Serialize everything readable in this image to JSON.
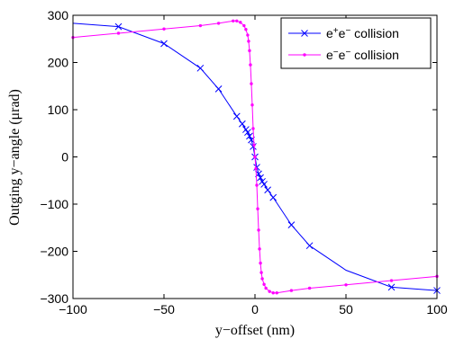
{
  "chart_data": {
    "type": "line",
    "title": "",
    "xlabel": "y−offset (nm)",
    "ylabel": "Outging y−angle (μrad)",
    "xlim": [
      -100,
      100
    ],
    "ylim": [
      -300,
      300
    ],
    "xticks": [
      -100,
      -50,
      0,
      50,
      100
    ],
    "yticks": [
      -300,
      -200,
      -100,
      0,
      100,
      200,
      300
    ],
    "xtick_labels": [
      "−100",
      "−50",
      "0",
      "50",
      "100"
    ],
    "ytick_labels": [
      "−300",
      "−200",
      "−100",
      "0",
      "100",
      "200",
      "300"
    ],
    "grid": false,
    "legend_position": "top-right",
    "series": [
      {
        "name": "e+e− collision",
        "legend_base1": "e",
        "legend_sup1": "+",
        "legend_base2": "e",
        "legend_sup2": "−",
        "legend_rest": " collision",
        "color": "#0000ff",
        "marker": "x",
        "x": [
          -100,
          -75,
          -50,
          -30,
          -20,
          -10,
          -7,
          -5,
          -4,
          -3,
          -2,
          -1,
          0,
          1,
          2,
          3,
          4,
          5,
          7,
          10,
          20,
          30,
          50,
          75,
          100
        ],
        "y": [
          283,
          276,
          240,
          188,
          144,
          86,
          70,
          58,
          52,
          44,
          36,
          22,
          0,
          -22,
          -36,
          -44,
          -52,
          -58,
          -70,
          -86,
          -144,
          -188,
          -240,
          -276,
          -283
        ],
        "marker_indices": [
          1,
          2,
          3,
          4,
          5,
          6,
          7,
          8,
          9,
          10,
          11,
          12,
          13,
          14,
          15,
          16,
          17,
          18,
          19,
          20,
          21,
          23,
          24
        ]
      },
      {
        "name": "e−e− collision",
        "legend_base1": "e",
        "legend_sup1": "−",
        "legend_base2": "e",
        "legend_sup2": "−",
        "legend_rest": " collision",
        "color": "#ff00ff",
        "marker": "dot",
        "x": [
          -100,
          -75,
          -50,
          -30,
          -20,
          -12,
          -10,
          -8,
          -6,
          -5,
          -4,
          -3.5,
          -3,
          -2.5,
          -2,
          -1.5,
          -1,
          -0.5,
          0,
          0.5,
          1,
          1.5,
          2,
          2.5,
          3,
          3.5,
          4,
          5,
          6,
          8,
          10,
          12,
          20,
          30,
          50,
          75,
          100
        ],
        "y": [
          253,
          262,
          271,
          278,
          283,
          288,
          288,
          285,
          278,
          270,
          258,
          245,
          225,
          195,
          155,
          110,
          60,
          25,
          0,
          -25,
          -60,
          -110,
          -155,
          -195,
          -225,
          -245,
          -258,
          -270,
          -278,
          -285,
          -288,
          -288,
          -283,
          -278,
          -271,
          -262,
          -253
        ]
      }
    ]
  }
}
